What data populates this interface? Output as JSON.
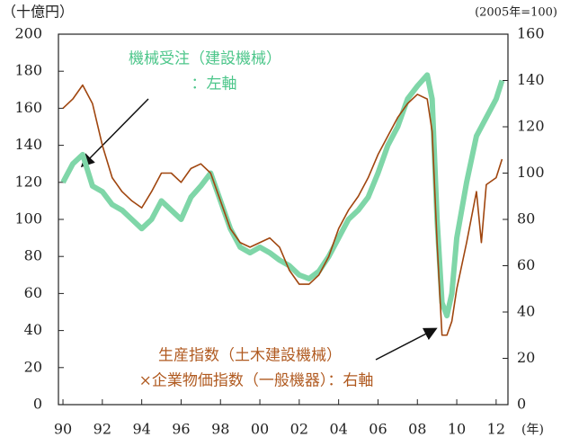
{
  "chart_data": {
    "type": "line",
    "ylabel": "（十億円）",
    "y2label": "(2005年=100)",
    "xlabel": "(年)",
    "annotations": [
      "機械受注（建設機械）",
      "：左軸",
      "生産指数（土木建設機械）",
      "×企業物価指数（一般機器）：右軸"
    ],
    "x": [
      1990,
      1990.5,
      1991,
      1991.5,
      1992,
      1992.5,
      1993,
      1993.5,
      1994,
      1994.5,
      1995,
      1995.5,
      1996,
      1996.5,
      1997,
      1997.5,
      1998,
      1998.5,
      1999,
      1999.5,
      2000,
      2000.5,
      2001,
      2001.5,
      2002,
      2002.5,
      2003,
      2003.5,
      2004,
      2004.5,
      2005,
      2005.5,
      2006,
      2006.5,
      2007,
      2007.5,
      2008,
      2008.5,
      2008.75,
      2009,
      2009.25,
      2009.5,
      2009.75,
      2010,
      2010.5,
      2011,
      2011.25,
      2011.5,
      2012,
      2012.3
    ],
    "series": [
      {
        "name": "機械受注（建設機械）",
        "color": "#7fd6a8",
        "values": [
          120,
          130,
          135,
          118,
          115,
          108,
          105,
          100,
          95,
          100,
          110,
          105,
          100,
          112,
          118,
          125,
          110,
          95,
          85,
          82,
          85,
          82,
          78,
          75,
          70,
          68,
          72,
          80,
          90,
          100,
          105,
          112,
          125,
          140,
          150,
          165,
          172,
          178,
          165,
          100,
          55,
          48,
          60,
          90,
          120,
          145,
          150,
          155,
          165,
          175
        ]
      },
      {
        "name": "生産指数（土木建設機械）×企業物価指数（一般機器）",
        "color": "#a0460f",
        "axis": "y2",
        "values": [
          128,
          132,
          138,
          130,
          112,
          98,
          92,
          88,
          85,
          92,
          100,
          100,
          96,
          102,
          104,
          100,
          88,
          76,
          70,
          68,
          70,
          72,
          68,
          58,
          52,
          52,
          56,
          64,
          76,
          84,
          90,
          98,
          108,
          116,
          124,
          130,
          134,
          132,
          118,
          70,
          30,
          30,
          36,
          50,
          70,
          92,
          70,
          95,
          98,
          106
        ]
      }
    ],
    "xlim": [
      1989.77,
      2012.6
    ],
    "xticks": [
      {
        "value": 1990,
        "label": "90"
      },
      {
        "value": 1992,
        "label": "92"
      },
      {
        "value": 1994,
        "label": "94"
      },
      {
        "value": 1996,
        "label": "96"
      },
      {
        "value": 1998,
        "label": "98"
      },
      {
        "value": 2000,
        "label": "00"
      },
      {
        "value": 2002,
        "label": "02"
      },
      {
        "value": 2004,
        "label": "04"
      },
      {
        "value": 2006,
        "label": "06"
      },
      {
        "value": 2008,
        "label": "08"
      },
      {
        "value": 2010,
        "label": "10"
      },
      {
        "value": 2012,
        "label": "12"
      }
    ],
    "ylim": [
      0,
      200
    ],
    "yticks": [
      0,
      20,
      40,
      60,
      80,
      100,
      120,
      140,
      160,
      180,
      200
    ],
    "y2lim": [
      0,
      160
    ],
    "y2ticks": [
      0,
      20,
      40,
      60,
      80,
      100,
      120,
      140,
      160
    ]
  }
}
